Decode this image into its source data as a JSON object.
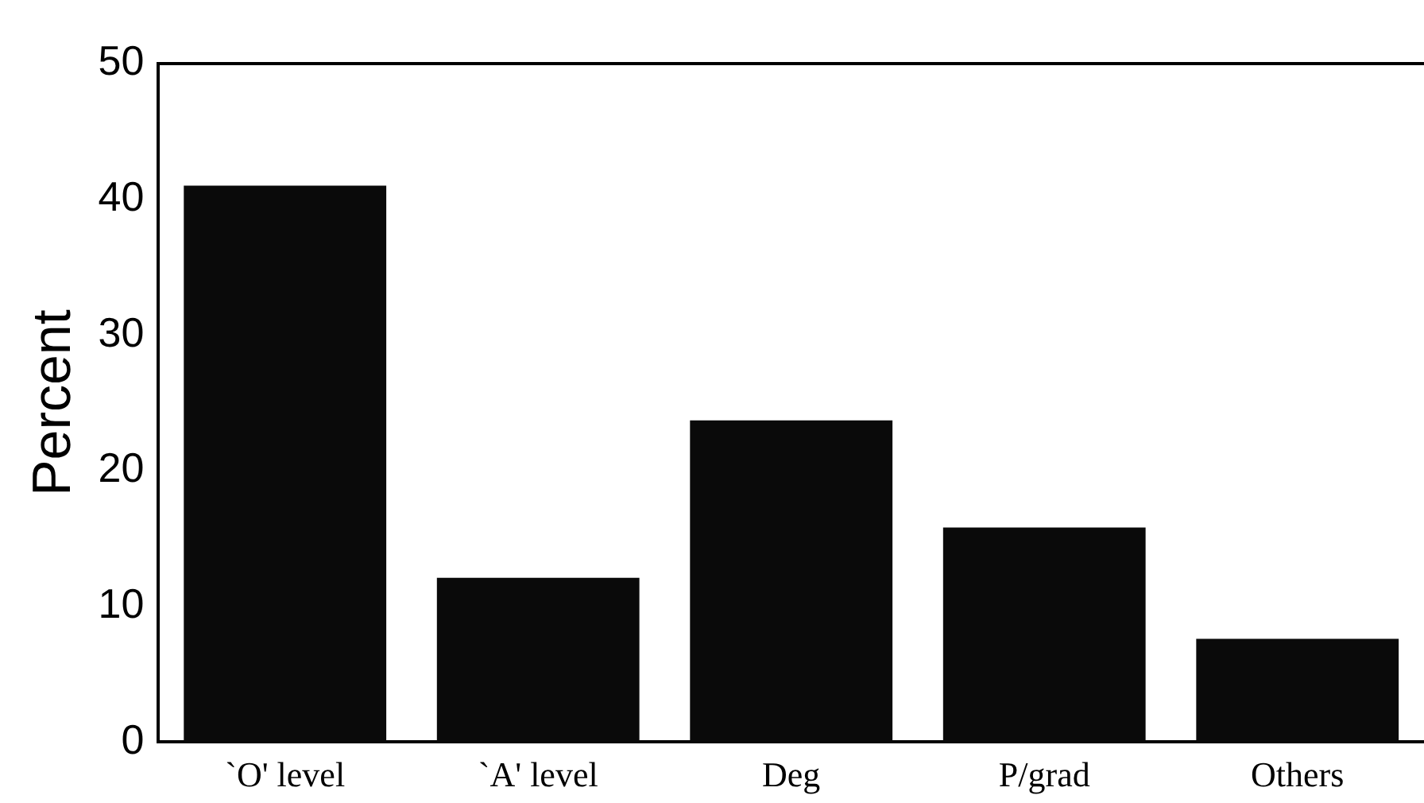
{
  "chart_data": {
    "type": "bar",
    "ylabel": "Percent",
    "categories": [
      "`O' level",
      "`A' level",
      "Deg",
      "P/grad",
      "Others"
    ],
    "values": [
      41.0,
      12.1,
      23.7,
      15.8,
      7.6
    ],
    "color": "#0a0a0a",
    "ylim": [
      0,
      50
    ],
    "yticks": [
      0,
      10,
      20,
      30,
      40,
      50
    ],
    "grid": false,
    "legend": false
  }
}
